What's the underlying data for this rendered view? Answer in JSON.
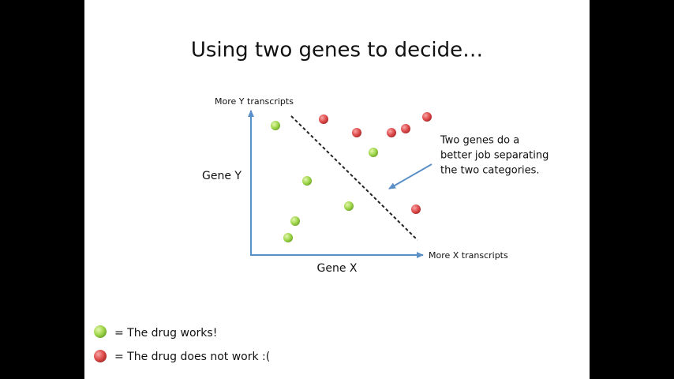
{
  "slide": {
    "title": "Using two genes to decide…",
    "y_axis_end_label": "More Y transcripts",
    "x_axis_end_label": "More X transcripts",
    "y_axis_label": "Gene Y",
    "x_axis_label": "Gene X",
    "annotation": [
      "Two genes do a",
      "better job separating",
      "the two categories."
    ],
    "legend": [
      "= The drug works!",
      "= The drug does not work :("
    ]
  }
}
